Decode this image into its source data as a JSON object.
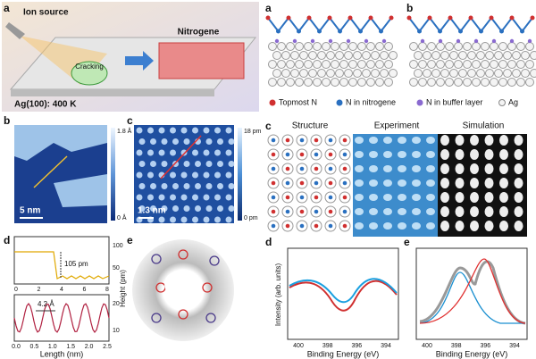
{
  "left": {
    "a": {
      "label": "a",
      "ion_source": "Ion source",
      "cracking": "Cracking",
      "product": "Nitrogene",
      "substrate": "Ag(100): 400 K"
    },
    "b": {
      "label": "b",
      "scale_max": "1.8 Å",
      "scale_min": "0 Å",
      "scale_bar": "5 nm"
    },
    "c": {
      "label": "c",
      "scale_max": "18 pm",
      "scale_min": "0 pm",
      "scale_bar": "1.3 nm"
    },
    "d": {
      "label": "d",
      "step": "105 pm",
      "period": "4.2 Å",
      "y_label": "Height (pm)",
      "x_label": "Length (nm)",
      "top_yticks": [
        "100",
        "50"
      ],
      "top_xticks": [
        "0",
        "2",
        "4",
        "6",
        "8"
      ],
      "bottom_yticks": [
        "20",
        "10"
      ],
      "bottom_xticks": [
        "0.0",
        "0.5",
        "1.0",
        "1.5",
        "2.0",
        "2.5"
      ]
    },
    "e": {
      "label": "e"
    }
  },
  "right": {
    "a": {
      "label": "a"
    },
    "b": {
      "label": "b"
    },
    "legend": [
      "Topmost N",
      "N in nitrogene",
      "N in buffer layer",
      "Ag"
    ],
    "c": {
      "label": "c",
      "titles": [
        "Structure",
        "Experiment",
        "Simulation"
      ]
    },
    "d": {
      "label": "d",
      "y_label": "Intensity (arb. units)",
      "x_label": "Binding Energy (eV)",
      "xticks": [
        "400",
        "398",
        "396",
        "394"
      ]
    },
    "e": {
      "label": "e",
      "x_label": "Binding Energy (eV)",
      "xticks": [
        "400",
        "398",
        "396",
        "394"
      ]
    }
  }
}
